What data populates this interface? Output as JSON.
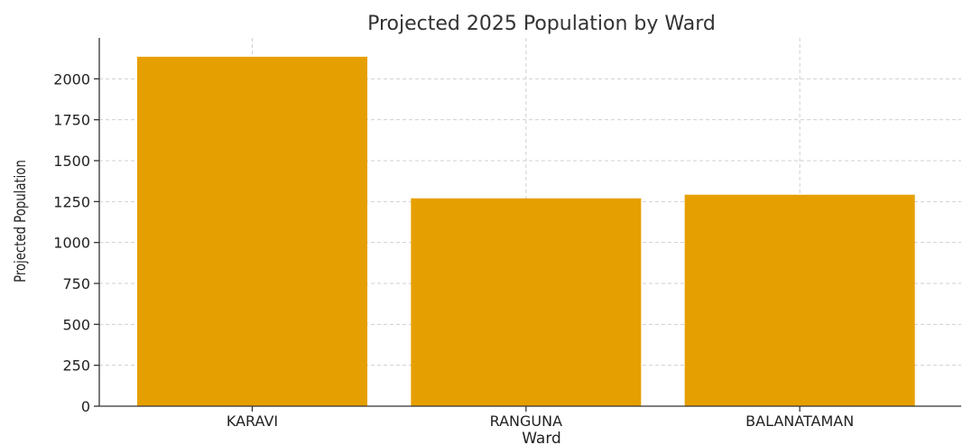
{
  "chart_data": {
    "type": "bar",
    "title": "Projected 2025 Population by Ward",
    "xlabel": "Ward",
    "ylabel": "Projected Population",
    "categories": [
      "KARAVI",
      "RANGUNA",
      "BALANATAMAN"
    ],
    "values": [
      2135,
      1270,
      1292
    ],
    "ylim": [
      0,
      2250
    ],
    "yticks": [
      0,
      250,
      500,
      750,
      1000,
      1250,
      1500,
      1750,
      2000
    ],
    "bar_color": "#E69F00",
    "grid": true
  }
}
